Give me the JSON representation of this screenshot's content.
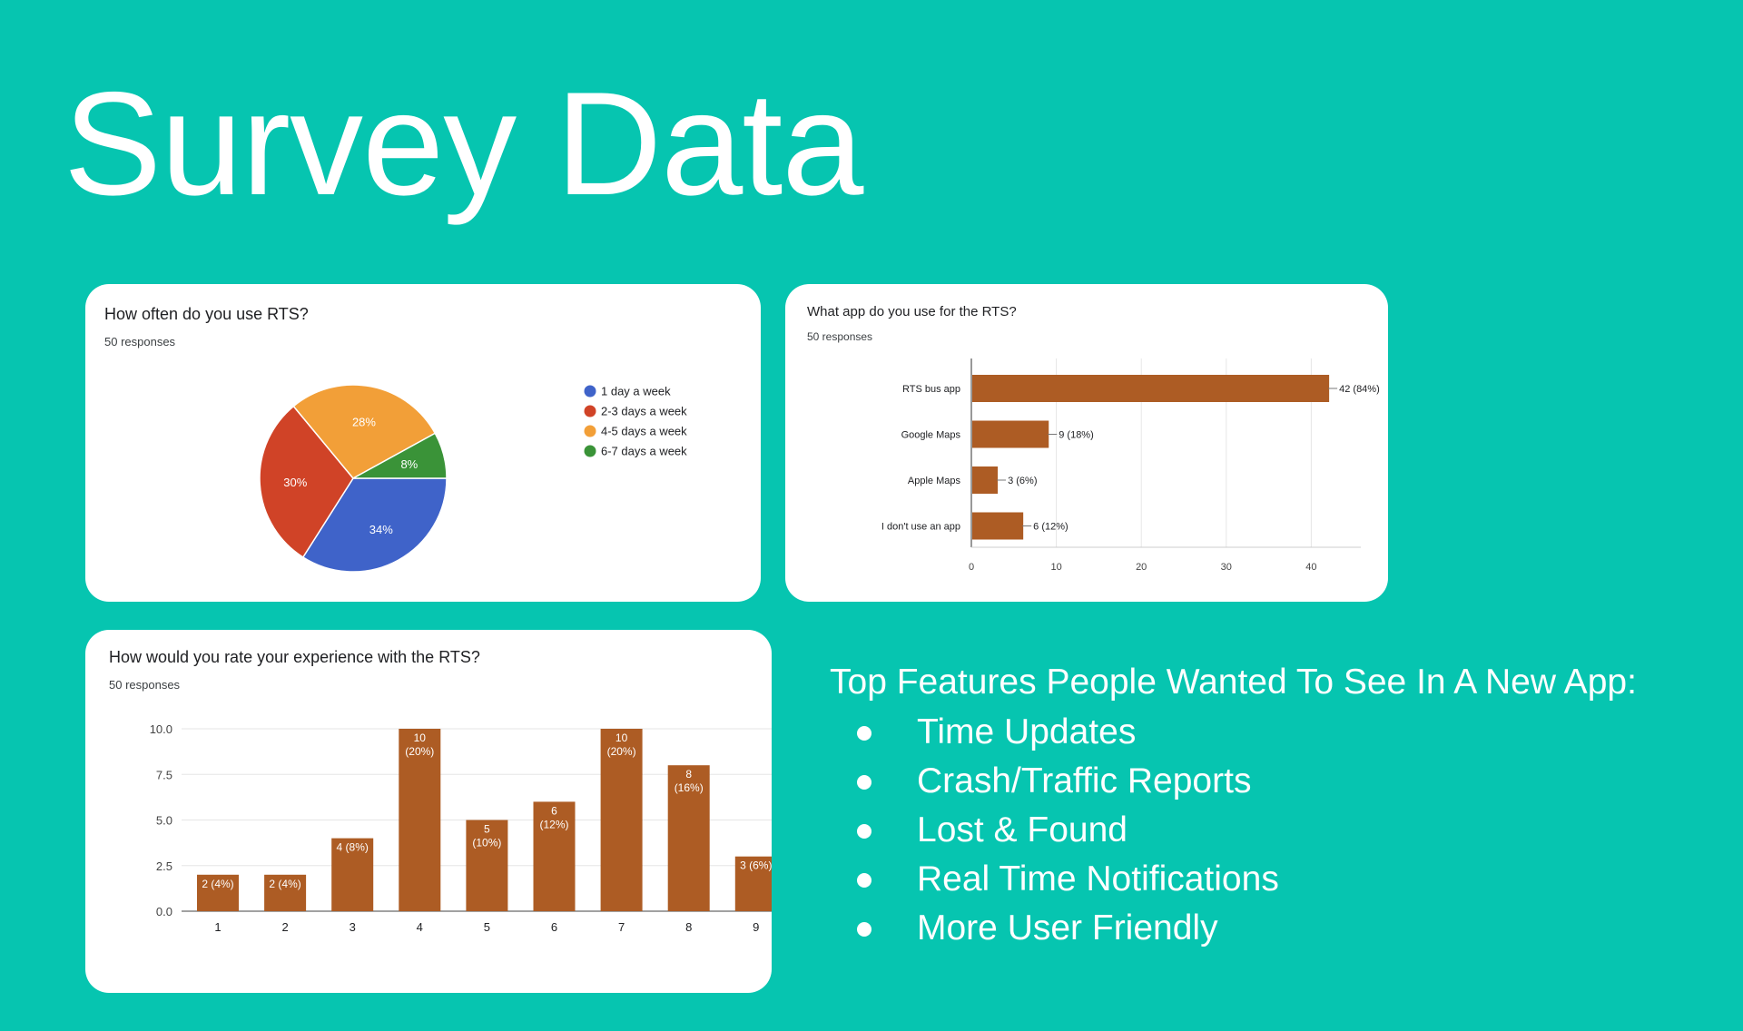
{
  "slide": {
    "title": "Survey Data"
  },
  "colors": {
    "background": "#06c5b0",
    "bar": "#ad5c24",
    "pie": [
      "#3f63c9",
      "#d04327",
      "#f29f38",
      "#3a9338"
    ]
  },
  "charts": {
    "usage": {
      "title": "How often do you use RTS?",
      "subtitle": "50 responses"
    },
    "app": {
      "title": "What app do you use for the RTS?",
      "subtitle": "50 responses"
    },
    "rating": {
      "title": "How would you rate your experience with the RTS?",
      "subtitle": "50 responses"
    }
  },
  "chart_data": [
    {
      "type": "pie",
      "title": "How often do you use RTS?",
      "subtitle": "50 responses",
      "legend_position": "right",
      "slices": [
        {
          "label": "1 day a week",
          "value": 34,
          "display": "34%",
          "color": "#3f63c9"
        },
        {
          "label": "2-3 days a week",
          "value": 30,
          "display": "30%",
          "color": "#d04327"
        },
        {
          "label": "4-5 days a week",
          "value": 28,
          "display": "28%",
          "color": "#f29f38"
        },
        {
          "label": "6-7 days a week",
          "value": 8,
          "display": "8%",
          "color": "#3a9338"
        }
      ]
    },
    {
      "type": "bar",
      "orientation": "horizontal",
      "title": "What app do you use for the RTS?",
      "subtitle": "50 responses",
      "categories": [
        "RTS bus app",
        "Google Maps",
        "Apple Maps",
        "I don't use an app"
      ],
      "values": [
        42,
        9,
        3,
        6
      ],
      "labels": [
        "42 (84%)",
        "9 (18%)",
        "3 (6%)",
        "6 (12%)"
      ],
      "xlim": [
        0,
        48
      ],
      "ticks": [
        0,
        10,
        20,
        30,
        40
      ],
      "grid": true,
      "color": "#ad5c24"
    },
    {
      "type": "bar",
      "orientation": "vertical",
      "title": "How would you rate your experience with the RTS?",
      "subtitle": "50 responses",
      "categories": [
        "1",
        "2",
        "3",
        "4",
        "5",
        "6",
        "7",
        "8",
        "9"
      ],
      "values": [
        2,
        2,
        4,
        10,
        5,
        6,
        10,
        8,
        3
      ],
      "labels": [
        "2 (4%)",
        "2 (4%)",
        "4 (8%)",
        "10\n(20%)",
        "5\n(10%)",
        "6\n(12%)",
        "10\n(20%)",
        "8\n(16%)",
        "3 (6%)"
      ],
      "ylim": [
        0,
        10
      ],
      "ticks": [
        "0.0",
        "2.5",
        "5.0",
        "7.5",
        "10.0"
      ],
      "grid": true,
      "color": "#ad5c24"
    }
  ],
  "features": {
    "heading": "Top Features People Wanted To See In A New App:",
    "items": [
      "Time Updates",
      "Crash/Traffic Reports",
      "Lost & Found",
      "Real Time Notifications",
      "More User Friendly"
    ]
  }
}
